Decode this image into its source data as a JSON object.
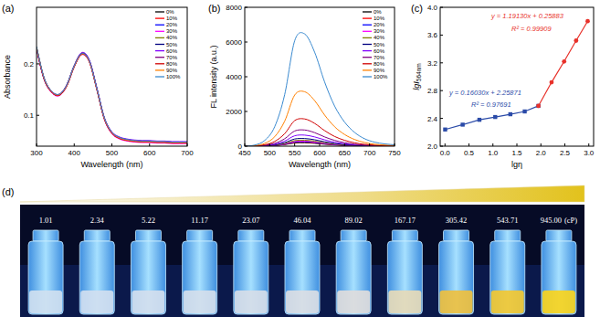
{
  "chart_data": [
    {
      "type": "line",
      "title": "(a)",
      "xlabel": "Wavelength (nm)",
      "ylabel": "Absorbance",
      "x": [
        300,
        320,
        340,
        360,
        380,
        400,
        420,
        440,
        460,
        480,
        500,
        520,
        540,
        560,
        580,
        600,
        620,
        640,
        660,
        680,
        700
      ],
      "xlim": [
        300,
        700
      ],
      "ylim": [
        0.04,
        0.31
      ],
      "xticks": [
        300,
        400,
        500,
        600,
        700
      ],
      "yticks": [
        0.1,
        0.2
      ],
      "legend": "top-right",
      "series": [
        {
          "name": "0%",
          "color": "#000000",
          "values": [
            0.232,
            0.172,
            0.146,
            0.14,
            0.158,
            0.196,
            0.22,
            0.206,
            0.152,
            0.094,
            0.066,
            0.056,
            0.052,
            0.05,
            0.049,
            0.049,
            0.048,
            0.048,
            0.047,
            0.047,
            0.047
          ]
        },
        {
          "name": "10%",
          "color": "#ff0000",
          "values": [
            0.23,
            0.171,
            0.145,
            0.139,
            0.157,
            0.195,
            0.219,
            0.205,
            0.151,
            0.093,
            0.065,
            0.055,
            0.051,
            0.049,
            0.048,
            0.048,
            0.047,
            0.047,
            0.046,
            0.046,
            0.046
          ]
        },
        {
          "name": "20%",
          "color": "#0000ff",
          "values": [
            0.231,
            0.172,
            0.146,
            0.14,
            0.158,
            0.196,
            0.221,
            0.207,
            0.153,
            0.095,
            0.067,
            0.057,
            0.053,
            0.051,
            0.05,
            0.05,
            0.049,
            0.049,
            0.048,
            0.048,
            0.048
          ]
        },
        {
          "name": "30%",
          "color": "#ff00ff",
          "values": [
            0.229,
            0.17,
            0.144,
            0.138,
            0.156,
            0.194,
            0.218,
            0.204,
            0.15,
            0.092,
            0.064,
            0.054,
            0.05,
            0.048,
            0.047,
            0.047,
            0.046,
            0.046,
            0.045,
            0.045,
            0.045
          ]
        },
        {
          "name": "40%",
          "color": "#808000",
          "values": [
            0.233,
            0.173,
            0.147,
            0.141,
            0.159,
            0.197,
            0.221,
            0.207,
            0.153,
            0.095,
            0.067,
            0.057,
            0.053,
            0.051,
            0.05,
            0.05,
            0.049,
            0.049,
            0.048,
            0.048,
            0.048
          ]
        },
        {
          "name": "50%",
          "color": "#000080",
          "values": [
            0.23,
            0.171,
            0.146,
            0.14,
            0.158,
            0.196,
            0.22,
            0.206,
            0.152,
            0.094,
            0.066,
            0.056,
            0.052,
            0.05,
            0.049,
            0.049,
            0.048,
            0.048,
            0.047,
            0.047,
            0.047
          ]
        },
        {
          "name": "60%",
          "color": "#8000ff",
          "values": [
            0.232,
            0.173,
            0.147,
            0.141,
            0.159,
            0.197,
            0.222,
            0.208,
            0.154,
            0.096,
            0.068,
            0.058,
            0.054,
            0.052,
            0.051,
            0.051,
            0.05,
            0.05,
            0.049,
            0.049,
            0.049
          ]
        },
        {
          "name": "70%",
          "color": "#800080",
          "values": [
            0.228,
            0.17,
            0.145,
            0.139,
            0.157,
            0.195,
            0.219,
            0.205,
            0.151,
            0.093,
            0.066,
            0.056,
            0.052,
            0.05,
            0.049,
            0.049,
            0.048,
            0.048,
            0.047,
            0.047,
            0.047
          ]
        },
        {
          "name": "80%",
          "color": "#d00000",
          "values": [
            0.231,
            0.171,
            0.145,
            0.139,
            0.156,
            0.194,
            0.218,
            0.204,
            0.15,
            0.093,
            0.065,
            0.055,
            0.051,
            0.049,
            0.048,
            0.048,
            0.047,
            0.047,
            0.046,
            0.046,
            0.046
          ]
        },
        {
          "name": "90%",
          "color": "#ff8000",
          "values": [
            0.233,
            0.172,
            0.146,
            0.14,
            0.157,
            0.195,
            0.219,
            0.205,
            0.151,
            0.094,
            0.066,
            0.056,
            0.052,
            0.05,
            0.049,
            0.049,
            0.048,
            0.048,
            0.047,
            0.047,
            0.047
          ]
        },
        {
          "name": "100%",
          "color": "#3a8ad0",
          "values": [
            0.234,
            0.173,
            0.147,
            0.141,
            0.158,
            0.196,
            0.22,
            0.206,
            0.152,
            0.095,
            0.067,
            0.057,
            0.053,
            0.051,
            0.05,
            0.05,
            0.049,
            0.049,
            0.048,
            0.048,
            0.048
          ]
        }
      ]
    },
    {
      "type": "line",
      "title": "(b)",
      "xlabel": "Wavelength (nm)",
      "ylabel": "FL intensity (a.u.)",
      "x": [
        450,
        470,
        490,
        510,
        530,
        550,
        570,
        590,
        610,
        630,
        650,
        670,
        690,
        710,
        730,
        750
      ],
      "xlim": [
        450,
        750
      ],
      "ylim": [
        0,
        8000
      ],
      "xticks": [
        450,
        500,
        550,
        600,
        650,
        700,
        750
      ],
      "yticks": [
        0,
        2000,
        4000,
        6000,
        8000
      ],
      "legend": "top-right",
      "series": [
        {
          "name": "0%",
          "color": "#000000",
          "values": [
            0,
            2,
            10,
            34,
            90,
            184,
            196,
            164,
            112,
            70,
            42,
            24,
            13,
            7,
            4,
            2
          ]
        },
        {
          "name": "10%",
          "color": "#ff0000",
          "values": [
            0,
            2,
            12,
            39,
            104,
            212,
            225,
            189,
            129,
            81,
            48,
            28,
            15,
            8,
            5,
            3
          ]
        },
        {
          "name": "20%",
          "color": "#0000ff",
          "values": [
            0,
            3,
            13,
            44,
            117,
            239,
            255,
            213,
            146,
            91,
            55,
            31,
            17,
            9,
            5,
            3
          ]
        },
        {
          "name": "30%",
          "color": "#ff00ff",
          "values": [
            0,
            3,
            15,
            51,
            135,
            276,
            294,
            246,
            168,
            105,
            63,
            36,
            20,
            11,
            6,
            4
          ]
        },
        {
          "name": "40%",
          "color": "#808000",
          "values": [
            0,
            4,
            18,
            60,
            158,
            322,
            343,
            287,
            196,
            123,
            74,
            42,
            23,
            12,
            7,
            4
          ]
        },
        {
          "name": "50%",
          "color": "#000080",
          "values": [
            0,
            5,
            23,
            77,
            203,
            414,
            441,
            369,
            252,
            158,
            95,
            54,
            29,
            16,
            9,
            5
          ]
        },
        {
          "name": "60%",
          "color": "#8000ff",
          "values": [
            0,
            7,
            33,
            111,
            293,
            598,
            637,
            533,
            364,
            228,
            137,
            78,
            42,
            23,
            13,
            8
          ]
        },
        {
          "name": "70%",
          "color": "#800080",
          "values": [
            0,
            10,
            48,
            162,
            428,
            874,
            931,
            779,
            532,
            333,
            200,
            114,
            62,
            33,
            19,
            11
          ]
        },
        {
          "name": "80%",
          "color": "#d00000",
          "values": [
            0,
            16,
            80,
            272,
            720,
            1472,
            1568,
            1312,
            896,
            560,
            336,
            192,
            104,
            56,
            32,
            19
          ]
        },
        {
          "name": "90%",
          "color": "#ff8000",
          "values": [
            0,
            32,
            160,
            544,
            1440,
            2944,
            3136,
            2624,
            1792,
            1120,
            672,
            384,
            208,
            112,
            64,
            38
          ]
        },
        {
          "name": "100%",
          "color": "#3a8ad0",
          "values": [
            0,
            66,
            330,
            1122,
            2970,
            6072,
            6468,
            5412,
            3696,
            2310,
            1386,
            792,
            429,
            231,
            132,
            79
          ]
        }
      ]
    },
    {
      "type": "line",
      "title": "(c)",
      "xlabel": "lgη",
      "ylabel": {
        "text": "lgI",
        "sub": "564nm"
      },
      "x": [
        0.004,
        0.369,
        0.718,
        1.048,
        1.363,
        1.663,
        1.949,
        2.223,
        2.485,
        2.735,
        2.976
      ],
      "xlim": [
        -0.1,
        3.1
      ],
      "ylim": [
        2.0,
        4.0
      ],
      "xticks": [
        {
          "value": 0,
          "label": "0.0"
        },
        0.5,
        {
          "value": 1,
          "label": "1.0"
        },
        1.5,
        {
          "value": 2,
          "label": "2.0"
        },
        2.5,
        {
          "value": 3,
          "label": "3.0"
        }
      ],
      "yticks": [
        {
          "value": 2,
          "label": "2.0"
        },
        2.4,
        2.8,
        3.2,
        3.6,
        {
          "value": 4,
          "label": "4.0"
        }
      ],
      "series": [
        {
          "color": "#2b4ba8",
          "marker": "square",
          "line_style": "solid",
          "values": [
            2.24,
            2.31,
            2.38,
            2.42,
            2.46,
            2.5,
            2.58,
            null,
            null,
            null,
            null
          ]
        },
        {
          "color": "#e8312a",
          "marker": "circle",
          "line_style": "solid",
          "values": [
            null,
            null,
            null,
            null,
            null,
            null,
            2.58,
            2.92,
            3.22,
            3.52,
            3.8
          ]
        }
      ],
      "annotations": [
        {
          "text": "y = 1.19130x + 0.25883",
          "color": "#e8312a"
        },
        {
          "text": "R² = 0.99909",
          "color": "#e8312a"
        },
        {
          "text": "y = 0.16030x + 2.25871",
          "color": "#2b4ba8"
        },
        {
          "text": "R² = 0.97691",
          "color": "#2b4ba8"
        }
      ]
    }
  ],
  "photo": {
    "title": "(d)",
    "unit": "(cP)",
    "viscosities": [
      "1.01",
      "2.34",
      "5.22",
      "11.17",
      "23.07",
      "46.04",
      "89.02",
      "167.17",
      "305.42",
      "543.71",
      "945.00"
    ],
    "liquid_colors": [
      "#cfdff0",
      "#d0def0",
      "#d2deee",
      "#d4deec",
      "#d6dde8",
      "#dadde4",
      "#dedcdc",
      "#e6dab8",
      "#eec040",
      "#f2c832",
      "#f8d41e"
    ]
  }
}
